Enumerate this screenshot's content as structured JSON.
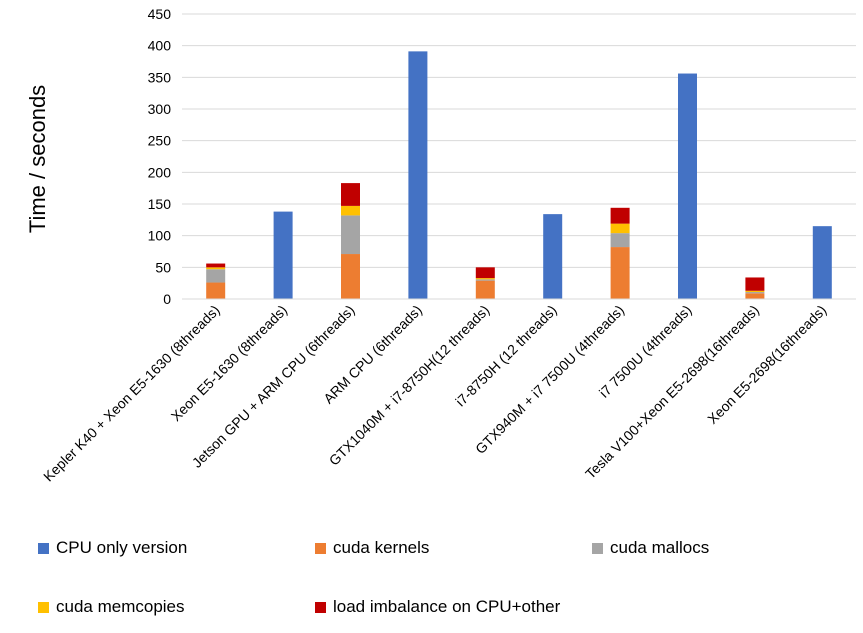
{
  "chart_data": {
    "type": "bar",
    "stacked": true,
    "ylabel": "Time / seconds",
    "xlabel": "",
    "title": "",
    "ylim": [
      0,
      450
    ],
    "yticks": [
      0,
      50,
      100,
      150,
      200,
      250,
      300,
      350,
      400,
      450
    ],
    "grid": true,
    "legend_position": "bottom",
    "categories": [
      "Kepler K40 +  Xeon E5-1630 (8threads)",
      "Xeon E5-1630 (8threads)",
      "Jetson GPU + ARM CPU (6threads)",
      "ARM CPU (6threads)",
      "GTX1040M + i7-8750H(12 threads)",
      "i7-8750H (12 threads)",
      "GTX940M + i7 7500U (4threads)",
      "i7 7500U (4threads)",
      "Tesla V100+Xeon E5-2698(16threads)",
      "Xeon E5-2698(16threads)"
    ],
    "series": [
      {
        "name": "CPU only version",
        "color": "#4472C4",
        "values": [
          0,
          138,
          0,
          391,
          0,
          134,
          0,
          356,
          0,
          115
        ]
      },
      {
        "name": "cuda kernels",
        "color": "#ED7D31",
        "values": [
          26,
          0,
          71,
          0,
          29,
          0,
          82,
          0,
          9,
          0
        ]
      },
      {
        "name": "cuda mallocs",
        "color": "#A5A5A5",
        "values": [
          21,
          0,
          61,
          0,
          2,
          0,
          22,
          0,
          2,
          0
        ]
      },
      {
        "name": "cuda memcopies",
        "color": "#FFC000",
        "values": [
          3,
          0,
          15,
          0,
          2,
          0,
          15,
          0,
          2,
          0
        ]
      },
      {
        "name": "load imbalance on CPU+other",
        "color": "#C00000",
        "values": [
          6,
          0,
          36,
          0,
          17,
          0,
          25,
          0,
          21,
          0
        ]
      }
    ]
  },
  "legend": {
    "items": [
      {
        "label": "CPU only version",
        "color": "#4472C4"
      },
      {
        "label": "cuda kernels",
        "color": "#ED7D31"
      },
      {
        "label": "cuda mallocs",
        "color": "#A5A5A5"
      },
      {
        "label": "cuda memcopies",
        "color": "#FFC000"
      },
      {
        "label": "load imbalance on CPU+other",
        "color": "#C00000"
      }
    ]
  }
}
